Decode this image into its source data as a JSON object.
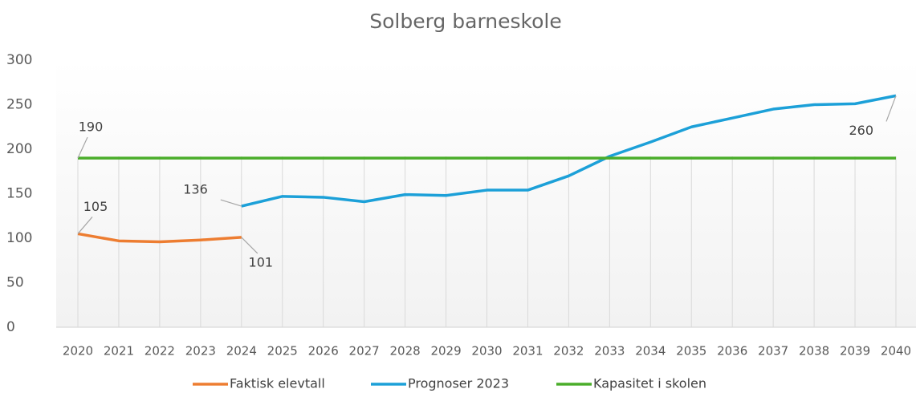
{
  "chart_data": {
    "type": "line",
    "title": "Solberg barneskole",
    "categories": [
      "2020",
      "2021",
      "2022",
      "2023",
      "2024",
      "2025",
      "2026",
      "2027",
      "2028",
      "2029",
      "2030",
      "2031",
      "2032",
      "2033",
      "2034",
      "2035",
      "2036",
      "2037",
      "2038",
      "2039",
      "2040"
    ],
    "series": [
      {
        "name": "Faktisk elevtall",
        "color": "#ed7d31",
        "values": [
          105,
          97,
          96,
          98,
          101,
          null,
          null,
          null,
          null,
          null,
          null,
          null,
          null,
          null,
          null,
          null,
          null,
          null,
          null,
          null,
          null
        ]
      },
      {
        "name": "Prognoser 2023",
        "color": "#1ca0d8",
        "values": [
          null,
          null,
          null,
          null,
          136,
          147,
          146,
          141,
          149,
          148,
          154,
          154,
          170,
          192,
          208,
          225,
          235,
          245,
          250,
          251,
          260
        ]
      },
      {
        "name": "Kapasitet i skolen",
        "color": "#4aad2a",
        "values": [
          190,
          190,
          190,
          190,
          190,
          190,
          190,
          190,
          190,
          190,
          190,
          190,
          190,
          190,
          190,
          190,
          190,
          190,
          190,
          190,
          190
        ]
      }
    ],
    "ylim": [
      0,
      300
    ],
    "yticks": [
      0,
      50,
      100,
      150,
      200,
      250,
      300
    ],
    "grid": true,
    "legend": "bottom"
  }
}
